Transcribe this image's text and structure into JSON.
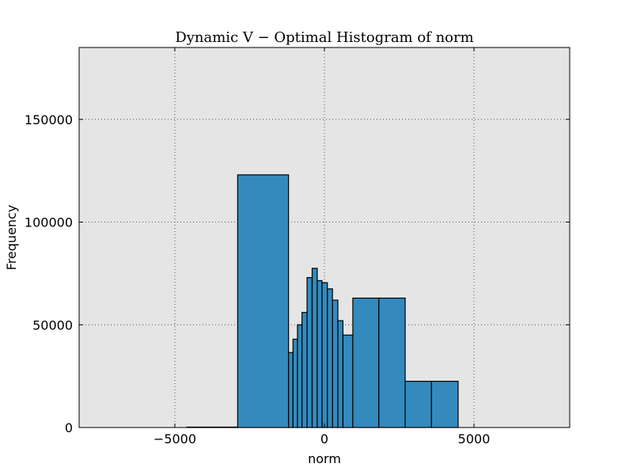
{
  "chart_data": {
    "type": "bar",
    "title": "Dynamic V − Optimal Histogram of norm",
    "xlabel": "norm",
    "ylabel": "Frequency",
    "xlim": [
      -8200,
      8200
    ],
    "ylim": [
      0,
      185000
    ],
    "xticks": [
      -5000,
      0,
      5000
    ],
    "xtick_labels": [
      "−5000",
      "0",
      "5000"
    ],
    "yticks": [
      0,
      50000,
      100000,
      150000
    ],
    "ytick_labels": [
      "0",
      "50000",
      "100000",
      "150000"
    ],
    "grid": true,
    "colors": {
      "bar": "#348abd",
      "edge": "#000000",
      "background": "#e5e5e5",
      "grid": "#555555"
    },
    "bins": [
      {
        "left": -4600,
        "right": -2900,
        "value": 200
      },
      {
        "left": -2900,
        "right": -1200,
        "value": 123000
      },
      {
        "left": -1200,
        "right": -1050,
        "value": 36500
      },
      {
        "left": -1050,
        "right": -900,
        "value": 43000
      },
      {
        "left": -900,
        "right": -750,
        "value": 50000
      },
      {
        "left": -750,
        "right": -580,
        "value": 56000
      },
      {
        "left": -580,
        "right": -410,
        "value": 73000
      },
      {
        "left": -410,
        "right": -240,
        "value": 77500
      },
      {
        "left": -240,
        "right": -80,
        "value": 71500
      },
      {
        "left": -80,
        "right": 100,
        "value": 70500
      },
      {
        "left": 100,
        "right": 270,
        "value": 67500
      },
      {
        "left": 270,
        "right": 450,
        "value": 62000
      },
      {
        "left": 450,
        "right": 620,
        "value": 52000
      },
      {
        "left": 620,
        "right": 950,
        "value": 45000
      },
      {
        "left": 950,
        "right": 1820,
        "value": 63000
      },
      {
        "left": 1820,
        "right": 2700,
        "value": 63000
      },
      {
        "left": 2700,
        "right": 3580,
        "value": 22500
      },
      {
        "left": 3580,
        "right": 4470,
        "value": 22500
      }
    ]
  }
}
